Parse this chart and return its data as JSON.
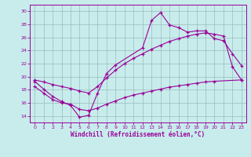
{
  "bg_color": "#c8ecec",
  "line_color": "#990099",
  "grid_color": "#99bbbb",
  "xlabel": "Windchill (Refroidissement éolien,°C)",
  "ylim": [
    13.0,
    31.0
  ],
  "xlim": [
    -0.5,
    23.5
  ],
  "yticks": [
    14,
    16,
    18,
    20,
    22,
    24,
    26,
    28,
    30
  ],
  "xticks": [
    0,
    1,
    2,
    3,
    4,
    5,
    6,
    7,
    8,
    9,
    10,
    11,
    12,
    13,
    14,
    15,
    16,
    17,
    18,
    19,
    20,
    21,
    22,
    23
  ],
  "line1_x": [
    0,
    1,
    2,
    3,
    4,
    5,
    6,
    7,
    8,
    9,
    12,
    13,
    14,
    15,
    16,
    17,
    18,
    19,
    20,
    21,
    22,
    23
  ],
  "line1_y": [
    19.3,
    18.1,
    17.0,
    16.2,
    15.6,
    13.8,
    14.1,
    17.5,
    20.5,
    21.8,
    24.4,
    28.6,
    29.8,
    27.9,
    27.5,
    26.8,
    27.0,
    27.0,
    25.8,
    25.5,
    23.5,
    21.7
  ],
  "line2_x": [
    0,
    1,
    2,
    3,
    4,
    5,
    6,
    7,
    8,
    9,
    10,
    11,
    12,
    13,
    14,
    15,
    16,
    17,
    18,
    19,
    20,
    21,
    22,
    23
  ],
  "line2_y": [
    19.5,
    19.2,
    18.8,
    18.5,
    18.2,
    17.8,
    17.5,
    18.5,
    19.8,
    21.0,
    22.0,
    22.8,
    23.5,
    24.2,
    24.8,
    25.4,
    25.8,
    26.2,
    26.5,
    26.7,
    26.5,
    26.2,
    21.5,
    19.5
  ],
  "line3_x": [
    0,
    1,
    2,
    3,
    4,
    5,
    6,
    7,
    8,
    9,
    10,
    11,
    12,
    13,
    14,
    15,
    16,
    17,
    18,
    19,
    20,
    23
  ],
  "line3_y": [
    18.5,
    17.5,
    16.5,
    16.0,
    15.8,
    15.0,
    14.8,
    15.2,
    15.8,
    16.3,
    16.8,
    17.2,
    17.5,
    17.8,
    18.1,
    18.4,
    18.6,
    18.8,
    19.0,
    19.2,
    19.3,
    19.5
  ]
}
